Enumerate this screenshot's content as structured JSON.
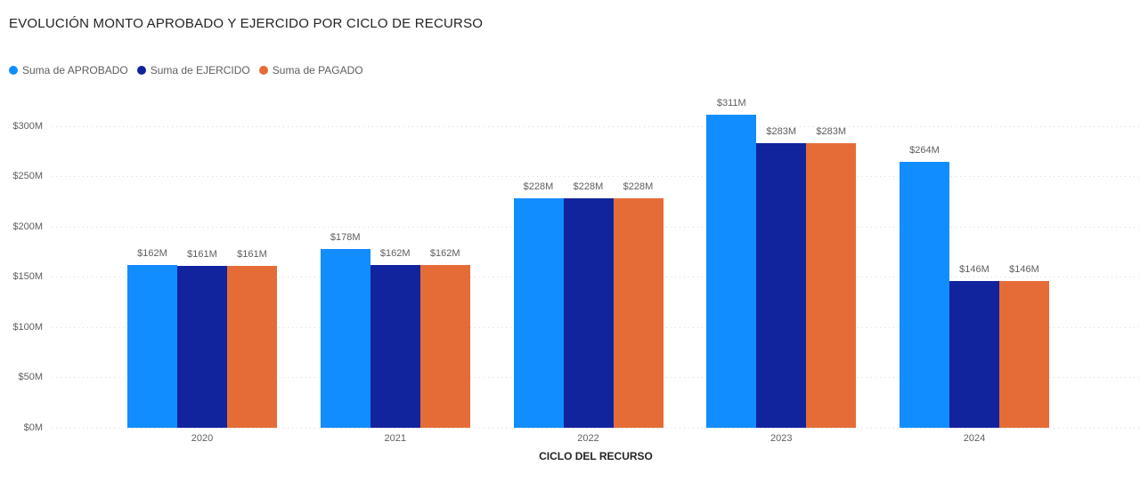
{
  "chart_data": {
    "type": "bar",
    "title": "EVOLUCIÓN MONTO APROBADO Y EJERCIDO POR CICLO DE RECURSO",
    "xlabel": "CICLO DEL RECURSO",
    "ylabel": "",
    "value_unit": "M",
    "categories": [
      "2020",
      "2021",
      "2022",
      "2023",
      "2024"
    ],
    "series": [
      {
        "name": "Suma de APROBADO",
        "key": "aprobado",
        "color": "#118DFF",
        "values": [
          162,
          178,
          228,
          311,
          264
        ],
        "labels": [
          "$162M",
          "$178M",
          "$228M",
          "$311M",
          "$264M"
        ]
      },
      {
        "name": "Suma de EJERCIDO",
        "key": "ejercido",
        "color": "#12239E",
        "values": [
          161,
          162,
          228,
          283,
          146
        ],
        "labels": [
          "$161M",
          "$162M",
          "$228M",
          "$283M",
          "$146M"
        ]
      },
      {
        "name": "Suma de PAGADO",
        "key": "pagado",
        "color": "#E66C37",
        "values": [
          161,
          162,
          228,
          283,
          146
        ],
        "labels": [
          "$161M",
          "$162M",
          "$228M",
          "$283M",
          "$146M"
        ]
      }
    ],
    "y_axis": {
      "min": 0,
      "max": 300,
      "tick_step": 50,
      "ticks": [
        {
          "value": 0,
          "label": "$0M"
        },
        {
          "value": 50,
          "label": "$50M"
        },
        {
          "value": 100,
          "label": "$100M"
        },
        {
          "value": 150,
          "label": "$150M"
        },
        {
          "value": 200,
          "label": "$200M"
        },
        {
          "value": 250,
          "label": "$250M"
        },
        {
          "value": 300,
          "label": "$300M"
        }
      ]
    },
    "legend_position": "top-left",
    "grid": "horizontal-dotted",
    "colors": {
      "grid": "#DBDBDB",
      "axis_text": "#605E5C",
      "title_text": "#252423"
    }
  }
}
